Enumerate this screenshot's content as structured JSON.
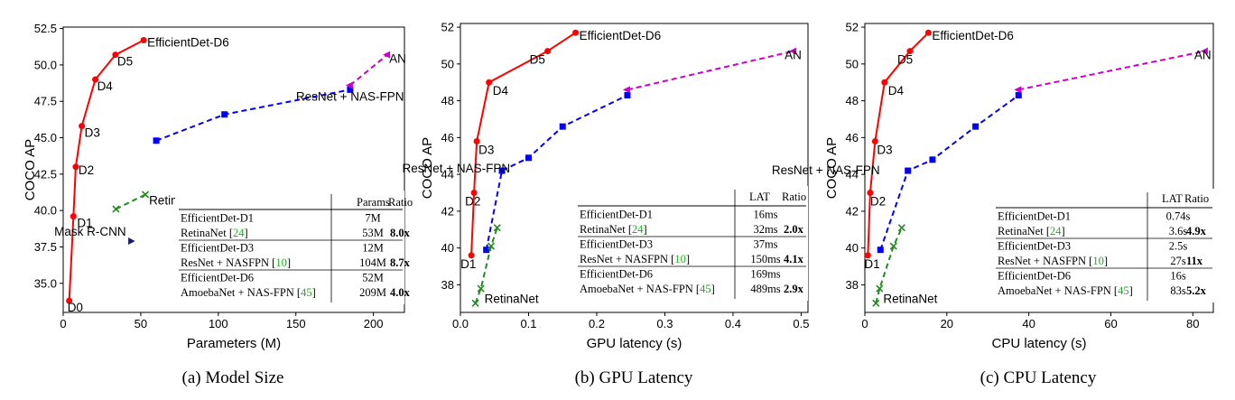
{
  "colors": {
    "efficientdet": "#ff0000",
    "resnet_nasfpn": "#0000ff",
    "retinanet": "#228b22",
    "amoebanet": "#cc00cc",
    "mask_rcnn": "#191970",
    "citation": "#22aa22"
  },
  "chart_data": [
    {
      "type": "line",
      "caption": "(a) Model Size",
      "xlabel": "Parameters (M)",
      "ylabel": "COCO AP",
      "xlim": [
        0,
        220
      ],
      "ylim": [
        33.0,
        52.6
      ],
      "xticks": [
        0,
        50,
        100,
        150,
        200
      ],
      "xtick_labels": [
        "0",
        "50",
        "100",
        "150",
        "200"
      ],
      "yticks": [
        35.0,
        37.5,
        40.0,
        42.5,
        45.0,
        47.5,
        50.0,
        52.5
      ],
      "ytick_labels": [
        "35.0",
        "37.5",
        "40.0",
        "42.5",
        "45.0",
        "47.5",
        "50.0",
        "52.5"
      ],
      "grid": false,
      "series": [
        {
          "key": "efficientdet",
          "marker": "dot",
          "dash": false,
          "x": [
            3.9,
            6.6,
            8.1,
            12.0,
            20.7,
            33.7,
            51.9
          ],
          "y": [
            33.8,
            39.6,
            43.0,
            45.8,
            49.0,
            50.7,
            51.7
          ],
          "point_labels": [
            "D0",
            "D1",
            "D2",
            "D3",
            "D4",
            "D5",
            "EfficientDet-D6"
          ]
        },
        {
          "key": "resnet_nasfpn",
          "marker": "square",
          "dash": true,
          "label": "ResNet + NAS-FPN",
          "x": [
            60,
            104,
            185
          ],
          "y": [
            44.8,
            46.6,
            48.3
          ]
        },
        {
          "key": "amoebanet",
          "marker": "triangle",
          "dash": true,
          "label": "AN",
          "x": [
            185,
            209
          ],
          "y": [
            48.6,
            50.7
          ]
        },
        {
          "key": "retinanet",
          "marker": "x",
          "dash": true,
          "label": "RetinaNet",
          "x": [
            34,
            53
          ],
          "y": [
            40.1,
            41.1
          ]
        },
        {
          "key": "mask_rcnn",
          "marker": "triangle-right",
          "dash": false,
          "label": "Mask R-CNN",
          "x": [
            44
          ],
          "y": [
            37.9
          ]
        }
      ],
      "table": {
        "headers": [
          "",
          "Params",
          "Ratio"
        ],
        "rows": [
          [
            "EfficientDet-D1",
            "",
            "7M",
            ""
          ],
          [
            "RetinaNet",
            "24",
            "53M",
            "8.0x"
          ],
          [
            "EfficientDet-D3",
            "",
            "12M",
            ""
          ],
          [
            "ResNet + NASFPN",
            "10",
            "104M",
            "8.7x"
          ],
          [
            "EfficientDet-D6",
            "",
            "52M",
            ""
          ],
          [
            "AmoebaNet + NAS-FPN",
            "45",
            "209M",
            "4.0x"
          ]
        ]
      }
    },
    {
      "type": "line",
      "caption": "(b) GPU Latency",
      "xlabel": "GPU latency (s)",
      "ylabel": "COCO AP",
      "xlim": [
        0,
        0.51
      ],
      "ylim": [
        36.5,
        52.2
      ],
      "xticks": [
        0.0,
        0.1,
        0.2,
        0.3,
        0.4,
        0.5
      ],
      "xtick_labels": [
        "0.0",
        "0.1",
        "0.2",
        "0.3",
        "0.4",
        "0.5"
      ],
      "yticks": [
        38,
        40,
        42,
        44,
        46,
        48,
        50,
        52
      ],
      "ytick_labels": [
        "38",
        "40",
        "42",
        "44",
        "46",
        "48",
        "50",
        "52"
      ],
      "grid": false,
      "series": [
        {
          "key": "efficientdet",
          "marker": "dot",
          "dash": false,
          "x": [
            0.016,
            0.02,
            0.024,
            0.042,
            0.128,
            0.169
          ],
          "y": [
            39.6,
            43.0,
            45.8,
            49.0,
            50.7,
            51.7
          ],
          "point_labels": [
            "D1",
            "D2",
            "D3",
            "D4",
            "D5",
            "EfficientDet-D6"
          ]
        },
        {
          "key": "resnet_nasfpn",
          "marker": "square",
          "dash": true,
          "label": "ResNet + NAS-FPN",
          "x": [
            0.038,
            0.061,
            0.1,
            0.15,
            0.245
          ],
          "y": [
            39.9,
            44.2,
            44.9,
            46.6,
            48.3
          ]
        },
        {
          "key": "amoebanet",
          "marker": "triangle",
          "dash": true,
          "label": "AN",
          "x": [
            0.245,
            0.489
          ],
          "y": [
            48.6,
            50.7
          ]
        },
        {
          "key": "retinanet",
          "marker": "x",
          "dash": true,
          "label": "RetinaNet",
          "x": [
            0.022,
            0.03,
            0.045,
            0.054
          ],
          "y": [
            37.0,
            37.8,
            40.1,
            41.1
          ]
        }
      ],
      "table": {
        "headers": [
          "",
          "LAT",
          "Ratio"
        ],
        "rows": [
          [
            "EfficientDet-D1",
            "",
            "16ms",
            ""
          ],
          [
            "RetinaNet",
            "24",
            "32ms",
            "2.0x"
          ],
          [
            "EfficientDet-D3",
            "",
            "37ms",
            ""
          ],
          [
            "ResNet + NASFPN",
            "10",
            "150ms",
            "4.1x"
          ],
          [
            "EfficientDet-D6",
            "",
            "169ms",
            ""
          ],
          [
            "AmoebaNet + NAS-FPN",
            "45",
            "489ms",
            "2.9x"
          ]
        ]
      }
    },
    {
      "type": "line",
      "caption": "(c) CPU Latency",
      "xlabel": "CPU latency (s)",
      "ylabel": "COCO AP",
      "xlim": [
        0,
        85
      ],
      "ylim": [
        36.5,
        52.2
      ],
      "xticks": [
        0,
        20,
        40,
        60,
        80
      ],
      "xtick_labels": [
        "0",
        "20",
        "40",
        "60",
        "80"
      ],
      "yticks": [
        38,
        40,
        42,
        44,
        46,
        48,
        50,
        52
      ],
      "ytick_labels": [
        "38",
        "40",
        "42",
        "44",
        "46",
        "48",
        "50",
        "52"
      ],
      "grid": false,
      "series": [
        {
          "key": "efficientdet",
          "marker": "dot",
          "dash": false,
          "x": [
            0.74,
            1.3,
            2.5,
            4.8,
            11.0,
            15.5
          ],
          "y": [
            39.6,
            43.0,
            45.8,
            49.0,
            50.7,
            51.7
          ],
          "point_labels": [
            "D1",
            "D2",
            "D3",
            "D4",
            "D5",
            "EfficientDet-D6"
          ]
        },
        {
          "key": "resnet_nasfpn",
          "marker": "square",
          "dash": true,
          "label": "ResNet + NAS-FPN",
          "x": [
            3.8,
            10.5,
            16.5,
            27.0,
            37.5
          ],
          "y": [
            39.9,
            44.2,
            44.8,
            46.6,
            48.3
          ]
        },
        {
          "key": "amoebanet",
          "marker": "triangle",
          "dash": true,
          "label": "AN",
          "x": [
            37.5,
            83.0
          ],
          "y": [
            48.6,
            50.7
          ]
        },
        {
          "key": "retinanet",
          "marker": "x",
          "dash": true,
          "label": "RetinaNet",
          "x": [
            2.7,
            3.6,
            7.0,
            9.0
          ],
          "y": [
            37.0,
            37.8,
            40.1,
            41.1
          ]
        }
      ],
      "table": {
        "headers": [
          "",
          "LAT",
          "Ratio"
        ],
        "rows": [
          [
            "EfficientDet-D1",
            "",
            "0.74s",
            ""
          ],
          [
            "RetinaNet",
            "24",
            "3.6s",
            "4.9x"
          ],
          [
            "EfficientDet-D3",
            "",
            "2.5s",
            ""
          ],
          [
            "ResNet + NASFPN",
            "10",
            "27s",
            "11x"
          ],
          [
            "EfficientDet-D6",
            "",
            "16s",
            ""
          ],
          [
            "AmoebaNet + NAS-FPN",
            "45",
            "83s",
            "5.2x"
          ]
        ]
      }
    }
  ]
}
